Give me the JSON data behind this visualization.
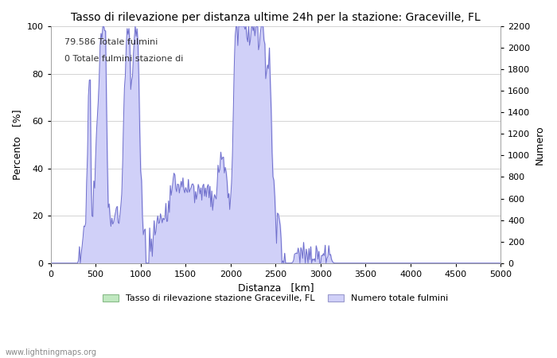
{
  "title": "Tasso di rilevazione per distanza ultime 24h per la stazione: Graceville, FL",
  "xlabel": "Distanza   [km]",
  "ylabel_left": "Percento   [%]",
  "ylabel_right": "Numero",
  "annotation_line1": "79.586 Totale fulmini",
  "annotation_line2": "0 Totale fulmini stazione di",
  "xlim": [
    0,
    5000
  ],
  "ylim_left": [
    0,
    100
  ],
  "ylim_right": [
    0,
    2200
  ],
  "xticks": [
    0,
    500,
    1000,
    1500,
    2000,
    2500,
    3000,
    3500,
    4000,
    4500,
    5000
  ],
  "yticks_left": [
    0,
    20,
    40,
    60,
    80,
    100
  ],
  "yticks_right": [
    0,
    200,
    400,
    600,
    800,
    1000,
    1200,
    1400,
    1600,
    1800,
    2000,
    2200
  ],
  "legend_label_green": "Tasso di rilevazione stazione Graceville, FL",
  "legend_label_blue": "Numero totale fulmini",
  "fill_color_blue": "#d0d0f8",
  "line_color_blue": "#7070cc",
  "fill_color_green": "#c0e8c0",
  "watermark": "www.lightningmaps.org",
  "background_color": "#ffffff",
  "grid_color": "#cccccc",
  "title_fontsize": 10,
  "axis_fontsize": 9,
  "tick_fontsize": 8
}
